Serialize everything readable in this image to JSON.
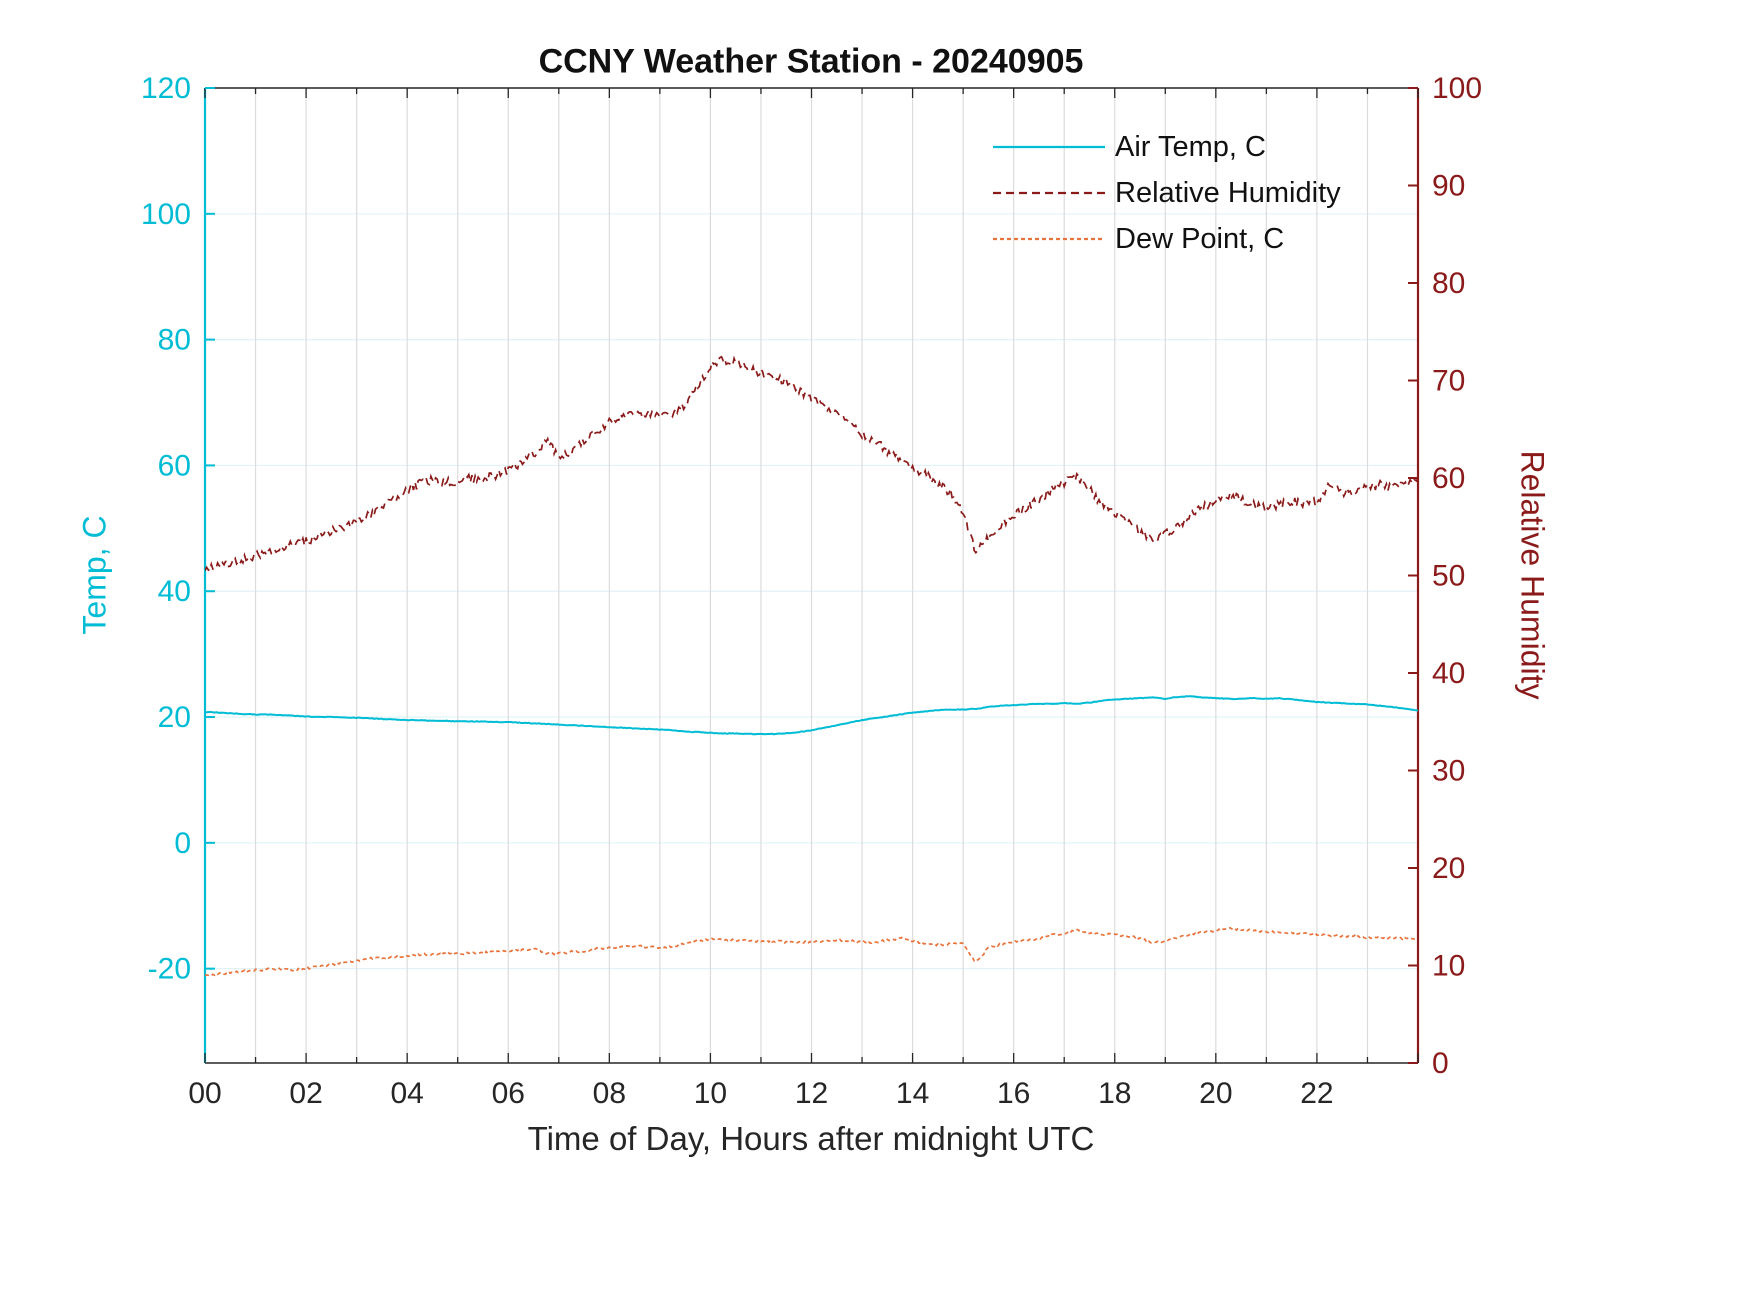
{
  "chart_data": {
    "type": "line",
    "title": "CCNY Weather Station - 20240905",
    "xlabel": "Time of Day, Hours after midnight UTC",
    "ylabel_left": "Temp, C",
    "ylabel_right": "Relative Humidity",
    "xlim": [
      0,
      24
    ],
    "ylim_left": [
      -35,
      120
    ],
    "ylim_right": [
      0,
      100
    ],
    "x_tick_values": [
      0,
      2,
      4,
      6,
      8,
      10,
      12,
      14,
      16,
      18,
      20,
      22
    ],
    "x_tick_labels": [
      "00",
      "02",
      "04",
      "06",
      "08",
      "10",
      "12",
      "14",
      "16",
      "18",
      "20",
      "22"
    ],
    "left_tick_values": [
      -20,
      0,
      20,
      40,
      60,
      80,
      100,
      120
    ],
    "right_tick_values": [
      0,
      10,
      20,
      30,
      40,
      50,
      60,
      70,
      80,
      90,
      100
    ],
    "grid": true,
    "legend_position": "top-right-inside",
    "colors": {
      "temp": "#00bcd4",
      "humidity": "#8B1A1A",
      "dew": "#e8743c",
      "grid_vertical": "#dcdcdc",
      "grid_horizontal": "#e2f3f8",
      "axis_black": "#262626"
    },
    "x_step_hours": 0.25,
    "series": [
      {
        "name": "Air Temp, C",
        "axis": "left",
        "style": "solid",
        "color_key": "temp",
        "values": [
          20.8,
          20.7,
          20.6,
          20.5,
          20.4,
          20.4,
          20.3,
          20.2,
          20.1,
          20.0,
          20.0,
          19.9,
          19.9,
          19.8,
          19.7,
          19.6,
          19.5,
          19.5,
          19.4,
          19.4,
          19.3,
          19.3,
          19.3,
          19.2,
          19.2,
          19.1,
          19.0,
          18.9,
          18.8,
          18.7,
          18.6,
          18.5,
          18.4,
          18.3,
          18.2,
          18.1,
          18.0,
          17.9,
          17.7,
          17.6,
          17.5,
          17.4,
          17.4,
          17.3,
          17.3,
          17.3,
          17.4,
          17.6,
          17.9,
          18.3,
          18.7,
          19.1,
          19.5,
          19.8,
          20.1,
          20.4,
          20.7,
          20.9,
          21.1,
          21.2,
          21.2,
          21.3,
          21.6,
          21.8,
          21.9,
          22.0,
          22.1,
          22.1,
          22.2,
          22.1,
          22.3,
          22.6,
          22.8,
          22.9,
          23.0,
          23.1,
          22.9,
          23.2,
          23.3,
          23.1,
          23.0,
          22.9,
          22.9,
          23.0,
          22.9,
          23.0,
          22.8,
          22.6,
          22.4,
          22.3,
          22.2,
          22.1,
          22.0,
          21.8,
          21.6,
          21.3,
          21.0
        ]
      },
      {
        "name": "Relative Humidity",
        "axis": "right",
        "style": "dashed",
        "color_key": "humidity",
        "values": [
          50.5,
          51.0,
          51.3,
          51.6,
          52.0,
          52.4,
          52.8,
          53.2,
          53.5,
          54.0,
          54.5,
          55.0,
          55.6,
          56.2,
          57.0,
          57.8,
          58.8,
          59.4,
          59.8,
          59.5,
          59.7,
          60.0,
          59.8,
          60.3,
          60.8,
          61.5,
          62.5,
          63.8,
          62.2,
          62.8,
          63.8,
          64.8,
          65.8,
          66.2,
          66.5,
          66.6,
          66.2,
          66.5,
          67.5,
          69.5,
          71.5,
          72.2,
          71.8,
          71.2,
          70.8,
          70.3,
          69.8,
          69.0,
          68.2,
          67.3,
          66.5,
          65.5,
          64.5,
          63.8,
          62.8,
          62.0,
          61.2,
          60.3,
          59.5,
          58.5,
          56.5,
          52.5,
          53.8,
          55.2,
          56.2,
          57.0,
          57.8,
          58.8,
          59.5,
          60.2,
          59.0,
          57.2,
          56.5,
          55.5,
          54.5,
          53.6,
          54.2,
          55.0,
          56.2,
          57.0,
          57.6,
          58.3,
          57.8,
          57.2,
          57.0,
          57.3,
          57.6,
          57.4,
          57.6,
          59.3,
          58.4,
          58.8,
          59.0,
          59.3,
          59.0,
          59.5,
          60.0
        ]
      },
      {
        "name": "Dew Point, C",
        "axis": "right",
        "style": "dashdot",
        "color_key": "dew",
        "values": [
          9.0,
          9.1,
          9.3,
          9.4,
          9.5,
          9.6,
          9.6,
          9.5,
          9.7,
          9.9,
          10.1,
          10.3,
          10.5,
          10.7,
          10.8,
          10.9,
          11.0,
          11.1,
          11.2,
          11.2,
          11.2,
          11.3,
          11.3,
          11.4,
          11.5,
          11.6,
          11.7,
          11.3,
          11.2,
          11.4,
          11.5,
          11.7,
          11.8,
          11.9,
          12.0,
          11.9,
          11.8,
          12.0,
          12.2,
          12.5,
          12.7,
          12.7,
          12.6,
          12.5,
          12.5,
          12.5,
          12.4,
          12.4,
          12.4,
          12.5,
          12.6,
          12.5,
          12.4,
          12.4,
          12.6,
          12.8,
          12.5,
          12.3,
          12.1,
          12.2,
          12.3,
          10.3,
          11.8,
          12.2,
          12.4,
          12.6,
          12.8,
          13.1,
          13.3,
          13.6,
          13.3,
          13.2,
          13.2,
          13.0,
          12.8,
          12.3,
          12.5,
          12.9,
          13.2,
          13.4,
          13.6,
          13.8,
          13.7,
          13.6,
          13.5,
          13.4,
          13.3,
          13.3,
          13.2,
          13.1,
          13.0,
          13.0,
          12.9,
          12.9,
          12.8,
          12.8,
          12.7
        ]
      }
    ]
  }
}
